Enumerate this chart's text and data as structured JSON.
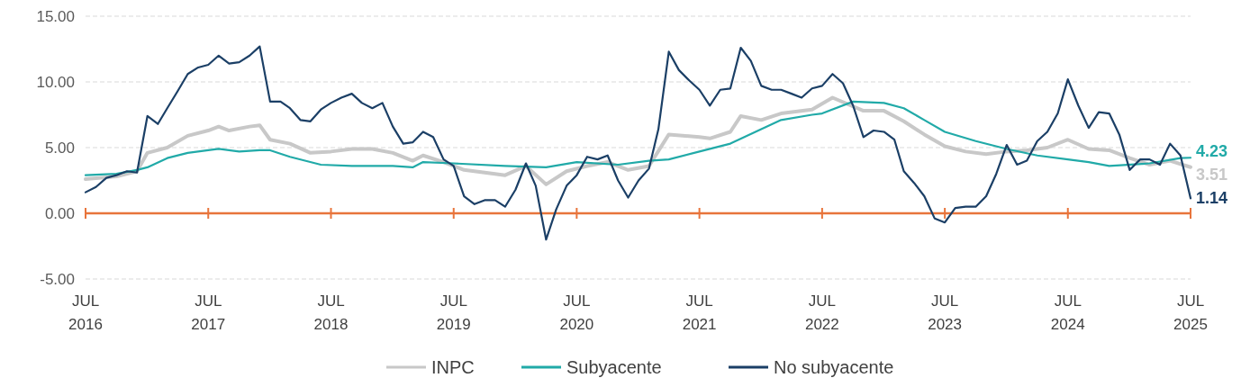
{
  "chart_data": {
    "type": "line",
    "xlim": [
      "2016-07",
      "2025-07"
    ],
    "ylim": [
      -5,
      15
    ],
    "yticks": [
      {
        "value": -5,
        "label": "-5.00"
      },
      {
        "value": 0,
        "label": "0.00"
      },
      {
        "value": 5,
        "label": "5.00"
      },
      {
        "value": 10,
        "label": "10.00"
      },
      {
        "value": 15,
        "label": "15.00"
      }
    ],
    "xticks": [
      {
        "value": "2016-07",
        "label": "JUL\n2016"
      },
      {
        "value": "2017-07",
        "label": "JUL\n2017"
      },
      {
        "value": "2018-07",
        "label": "JUL\n2018"
      },
      {
        "value": "2019-07",
        "label": "JUL\n2019"
      },
      {
        "value": "2020-07",
        "label": "JUL\n2020"
      },
      {
        "value": "2021-07",
        "label": "JUL\n2021"
      },
      {
        "value": "2022-07",
        "label": "JUL\n2022"
      },
      {
        "value": "2023-07",
        "label": "JUL\n2023"
      },
      {
        "value": "2024-07",
        "label": "JUL\n2024"
      },
      {
        "value": "2025-07",
        "label": "JUL\n2025"
      }
    ],
    "grid": "y",
    "legend": "bottom",
    "ref_lines": [
      {
        "axis": "y",
        "value": 0,
        "color": "#e8743b"
      }
    ],
    "line_style": "solid",
    "series": [
      {
        "name": "INPC",
        "color": "#c8c8c8",
        "x": [
          "2016-07",
          "2016-10",
          "2016-12",
          "2017-01",
          "2017-03",
          "2017-05",
          "2017-07",
          "2017-08",
          "2017-09",
          "2017-11",
          "2017-12",
          "2018-01",
          "2018-03",
          "2018-05",
          "2018-07",
          "2018-09",
          "2018-11",
          "2019-01",
          "2019-03",
          "2019-04",
          "2019-06",
          "2019-08",
          "2019-11",
          "2019-12",
          "2020-02",
          "2020-04",
          "2020-06",
          "2020-08",
          "2020-10",
          "2020-12",
          "2021-02",
          "2021-04",
          "2021-07",
          "2021-08",
          "2021-10",
          "2021-11",
          "2022-01",
          "2022-03",
          "2022-06",
          "2022-08",
          "2022-11",
          "2023-01",
          "2023-03",
          "2023-05",
          "2023-07",
          "2023-09",
          "2023-11",
          "2024-01",
          "2024-03",
          "2024-05",
          "2024-07",
          "2024-09",
          "2024-11",
          "2025-01",
          "2025-03",
          "2025-05",
          "2025-07"
        ],
        "values": [
          2.6,
          2.8,
          3.2,
          4.6,
          5.0,
          5.9,
          6.3,
          6.6,
          6.3,
          6.6,
          6.7,
          5.6,
          5.3,
          4.6,
          4.7,
          4.9,
          4.9,
          4.6,
          4.0,
          4.4,
          3.9,
          3.3,
          3.0,
          2.9,
          3.6,
          2.2,
          3.2,
          3.6,
          3.9,
          3.3,
          3.6,
          6.0,
          5.8,
          5.7,
          6.2,
          7.4,
          7.1,
          7.6,
          7.9,
          8.8,
          7.8,
          7.8,
          7.0,
          6.0,
          5.1,
          4.7,
          4.5,
          4.7,
          4.8,
          5.0,
          5.6,
          4.9,
          4.8,
          4.2,
          3.7,
          4.0,
          3.51
        ]
      },
      {
        "name": "Subyacente",
        "color": "#21aaa8",
        "x": [
          "2016-07",
          "2016-10",
          "2016-12",
          "2017-01",
          "2017-03",
          "2017-05",
          "2017-07",
          "2017-08",
          "2017-10",
          "2017-12",
          "2018-01",
          "2018-03",
          "2018-06",
          "2018-09",
          "2018-11",
          "2019-01",
          "2019-03",
          "2019-04",
          "2019-07",
          "2019-12",
          "2020-04",
          "2020-07",
          "2020-11",
          "2021-02",
          "2021-04",
          "2021-07",
          "2021-10",
          "2022-01",
          "2022-03",
          "2022-06",
          "2022-07",
          "2022-10",
          "2023-01",
          "2023-03",
          "2023-05",
          "2023-07",
          "2023-10",
          "2024-01",
          "2024-04",
          "2024-07",
          "2024-09",
          "2024-11",
          "2025-03",
          "2025-06",
          "2025-07"
        ],
        "values": [
          2.9,
          3.0,
          3.3,
          3.5,
          4.2,
          4.6,
          4.8,
          4.9,
          4.7,
          4.8,
          4.8,
          4.3,
          3.7,
          3.6,
          3.6,
          3.6,
          3.5,
          3.9,
          3.8,
          3.6,
          3.5,
          3.9,
          3.7,
          4.0,
          4.1,
          4.7,
          5.3,
          6.4,
          7.1,
          7.5,
          7.6,
          8.5,
          8.4,
          8.0,
          7.1,
          6.2,
          5.5,
          4.9,
          4.4,
          4.1,
          3.9,
          3.6,
          3.8,
          4.2,
          4.23
        ]
      },
      {
        "name": "No subyacente",
        "color": "#1b3f66",
        "x": [
          "2016-07",
          "2016-08",
          "2016-09",
          "2016-10",
          "2016-11",
          "2016-12",
          "2017-01",
          "2017-02",
          "2017-03",
          "2017-04",
          "2017-05",
          "2017-06",
          "2017-07",
          "2017-08",
          "2017-09",
          "2017-10",
          "2017-11",
          "2017-12",
          "2018-01",
          "2018-02",
          "2018-03",
          "2018-04",
          "2018-05",
          "2018-06",
          "2018-07",
          "2018-08",
          "2018-09",
          "2018-10",
          "2018-11",
          "2018-12",
          "2019-01",
          "2019-02",
          "2019-03",
          "2019-04",
          "2019-05",
          "2019-06",
          "2019-07",
          "2019-08",
          "2019-09",
          "2019-10",
          "2019-11",
          "2019-12",
          "2020-01",
          "2020-02",
          "2020-03",
          "2020-04",
          "2020-05",
          "2020-06",
          "2020-07",
          "2020-08",
          "2020-09",
          "2020-10",
          "2020-11",
          "2020-12",
          "2021-01",
          "2021-02",
          "2021-03",
          "2021-04",
          "2021-05",
          "2021-06",
          "2021-07",
          "2021-08",
          "2021-09",
          "2021-10",
          "2021-11",
          "2021-12",
          "2022-01",
          "2022-02",
          "2022-03",
          "2022-04",
          "2022-05",
          "2022-06",
          "2022-07",
          "2022-08",
          "2022-09",
          "2022-10",
          "2022-11",
          "2022-12",
          "2023-01",
          "2023-02",
          "2023-03",
          "2023-04",
          "2023-05",
          "2023-06",
          "2023-07",
          "2023-08",
          "2023-09",
          "2023-10",
          "2023-11",
          "2023-12",
          "2024-01",
          "2024-02",
          "2024-03",
          "2024-04",
          "2024-05",
          "2024-06",
          "2024-07",
          "2024-08",
          "2024-09",
          "2024-10",
          "2024-11",
          "2024-12",
          "2025-01",
          "2025-02",
          "2025-03",
          "2025-04",
          "2025-05",
          "2025-06",
          "2025-07"
        ],
        "values": [
          1.6,
          2.0,
          2.7,
          2.9,
          3.2,
          3.1,
          7.4,
          6.8,
          8.0,
          9.3,
          10.6,
          11.1,
          11.3,
          12.0,
          11.4,
          11.5,
          12.0,
          12.7,
          8.5,
          8.5,
          8.0,
          7.1,
          7.0,
          7.9,
          8.4,
          8.8,
          9.1,
          8.4,
          8.0,
          8.4,
          6.6,
          5.3,
          5.4,
          6.2,
          5.8,
          4.1,
          3.6,
          1.3,
          0.7,
          1.0,
          1.0,
          0.5,
          1.8,
          3.8,
          2.1,
          -2.0,
          0.3,
          2.1,
          2.9,
          4.3,
          4.1,
          4.4,
          2.5,
          1.2,
          2.5,
          3.4,
          6.4,
          12.3,
          10.9,
          10.1,
          9.4,
          8.2,
          9.4,
          9.5,
          12.6,
          11.6,
          9.7,
          9.4,
          9.4,
          9.1,
          8.8,
          9.5,
          9.7,
          10.6,
          9.9,
          8.2,
          5.8,
          6.3,
          6.2,
          5.6,
          3.2,
          2.3,
          1.3,
          -0.4,
          -0.7,
          0.4,
          0.5,
          0.5,
          1.3,
          3.0,
          5.2,
          3.7,
          4.0,
          5.5,
          6.2,
          7.6,
          10.2,
          8.2,
          6.5,
          7.7,
          7.6,
          6.0,
          3.3,
          4.1,
          4.1,
          3.7,
          5.3,
          4.4,
          1.14
        ]
      }
    ],
    "annotations": [
      {
        "text": "4.23",
        "x": "2025-07",
        "y": 4.23
      },
      {
        "text": "3.51",
        "x": "2025-07",
        "y": 3.51
      },
      {
        "text": "1.14",
        "x": "2025-07",
        "y": 1.14
      }
    ]
  }
}
